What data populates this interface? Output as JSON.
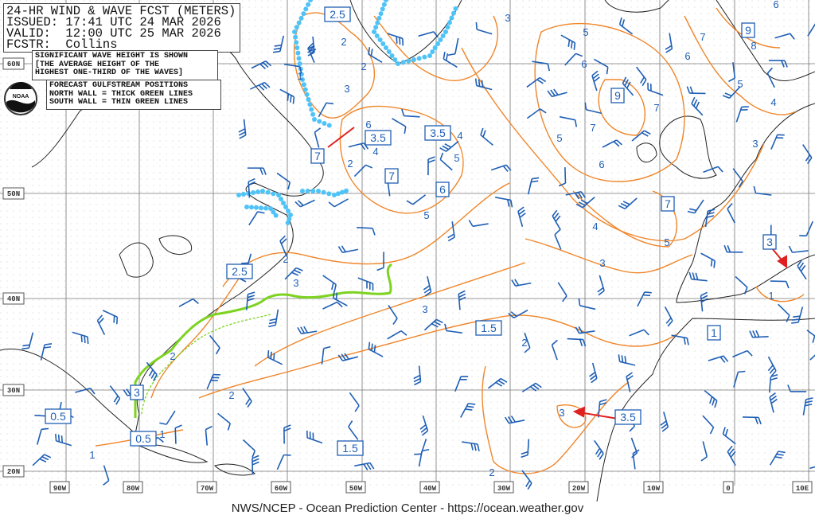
{
  "header": {
    "title": "24-HR WIND & WAVE FCST (METERS)",
    "issued": "ISSUED: 17:41 UTC 24 MAR 2026",
    "valid": "VALID:  12:00 UTC 25 MAR 2026",
    "forecaster": "FCSTR:  Collins"
  },
  "notes": {
    "sig_wave": [
      "SIGNIFICANT WAVE HEIGHT IS SHOWN",
      "[THE AVERAGE HEIGHT OF THE",
      "HIGHEST ONE-THIRD OF THE WAVES]"
    ],
    "gulfstream": [
      "FORECAST GULFSTREAM POSITIONS",
      "NORTH WALL = THICK GREEN LINES",
      "SOUTH WALL = THIN GREEN LINES"
    ]
  },
  "logo": {
    "text": "NOAA"
  },
  "footer": "NWS/NCEP - Ocean Prediction Center - https://ocean.weather.gov",
  "axes": {
    "longitudes": [
      "90W",
      "80W",
      "70W",
      "60W",
      "50W",
      "40W",
      "30W",
      "20W",
      "10W",
      "0",
      "10E"
    ],
    "latitudes": [
      "60N",
      "50N",
      "40N",
      "30N",
      "20N"
    ]
  },
  "wave_height_maxmin_labels": [
    "2.5",
    "9",
    "9",
    "3.5",
    "3.5",
    "7",
    "7",
    "6",
    "7",
    "3",
    "2.5",
    "1.5",
    "1",
    "3",
    "0.5",
    "3.5",
    "0.5",
    "1.5"
  ],
  "contour_labels": [
    "2",
    "1",
    "2",
    "3",
    "3",
    "5",
    "6",
    "7",
    "6",
    "8",
    "6",
    "5",
    "4",
    "7",
    "7",
    "6",
    "5",
    "5",
    "4",
    "4",
    "6",
    "2",
    "3",
    "4",
    "5",
    "3",
    "5",
    "2",
    "3",
    "3",
    "2",
    "2",
    "2",
    "3",
    "1",
    "1",
    "2",
    "1"
  ],
  "colors": {
    "wave_contours": "#f0862a",
    "wind_barbs": "#1f5fb5",
    "gulfstream": "#7dd321",
    "ice_edge": "#4fc3f7",
    "arrows": "#e02020",
    "coastline": "#222222",
    "grid": "#777777"
  }
}
